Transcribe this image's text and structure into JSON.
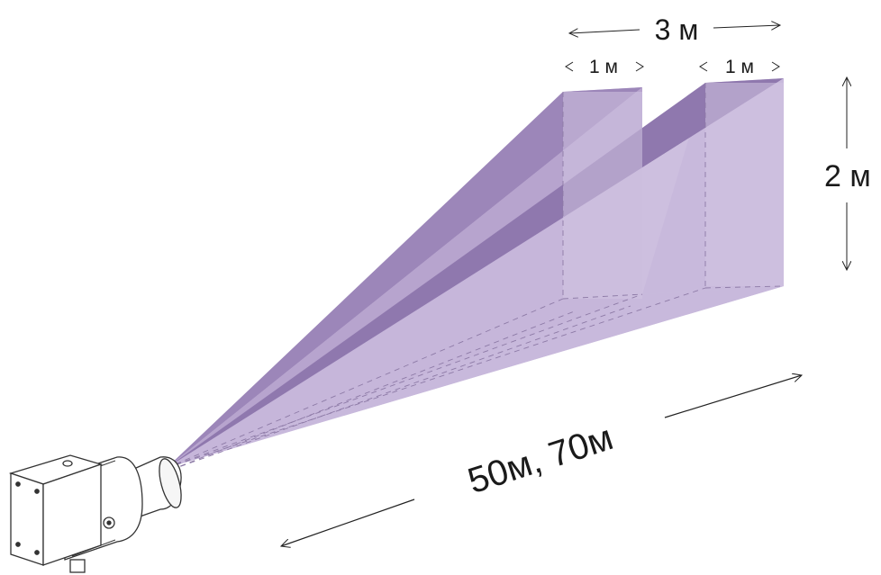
{
  "dimensions": {
    "total_width": "3 м",
    "beam_width_left": "1 м",
    "beam_width_right": "1 м",
    "height": "2 м",
    "range": "50м, 70м"
  },
  "colors": {
    "beam_light": "#c9b9db",
    "beam_mid": "#b39fcb",
    "beam_dark": "#8e76ab",
    "line": "#222222"
  }
}
